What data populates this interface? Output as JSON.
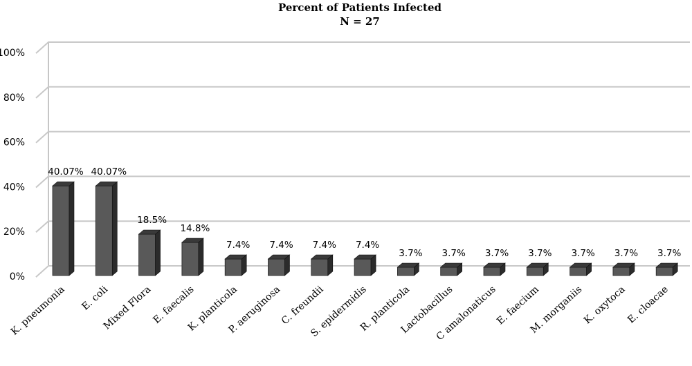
{
  "chart_data": {
    "type": "bar",
    "title": "Percent of Patients Infected",
    "subtitle": "N = 27",
    "xlabel": "",
    "ylabel": "",
    "ylim": [
      0,
      100
    ],
    "yticks": [
      "0%",
      "20%",
      "40%",
      "60%",
      "80%",
      "100%"
    ],
    "grid": true,
    "legend": "none",
    "categories": [
      "K. pneumonia",
      "E. coli",
      "Mixed Flora",
      "E. faecalis",
      "K. planticola",
      "P. aeruginosa",
      "C. freundii",
      "S. epidermidis",
      "R. planticola",
      "Lactobacillus",
      "C amalonaticus",
      "E. faecium",
      "M. morganiis",
      "K. oxytoca",
      "E. cloacae"
    ],
    "values": [
      40.07,
      40.07,
      18.5,
      14.8,
      7.4,
      7.4,
      7.4,
      7.4,
      3.7,
      3.7,
      3.7,
      3.7,
      3.7,
      3.7,
      3.7
    ],
    "data_labels": [
      "40.07%",
      "40.07%",
      "18.5%",
      "14.8%",
      "7.4%",
      "7.4%",
      "7.4%",
      "7.4%",
      "3.7%",
      "3.7%",
      "3.7%",
      "3.7%",
      "3.7%",
      "3.7%",
      "3.7%"
    ],
    "colors": {
      "bar_front": "#595959",
      "bar_side": "#2b2b2b",
      "bar_top": "#3a3a3a",
      "grid": "#c8c8c8",
      "wall": "#8c8c8c"
    }
  }
}
